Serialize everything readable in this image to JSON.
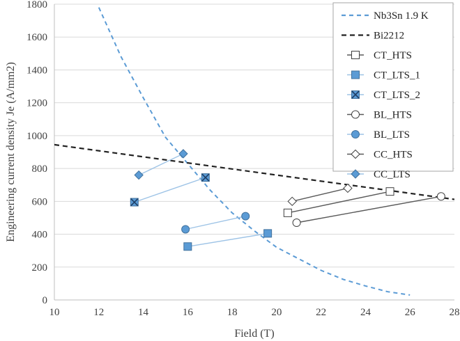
{
  "chart_data": {
    "type": "scatter",
    "title": "",
    "xlabel": "Field (T)",
    "ylabel": "Engineering current density Je (A/mm2)",
    "xlim": [
      10,
      28
    ],
    "ylim": [
      0,
      1800
    ],
    "xticks": [
      10,
      12,
      14,
      16,
      18,
      20,
      22,
      24,
      26,
      28
    ],
    "yticks": [
      0,
      200,
      400,
      600,
      800,
      1000,
      1200,
      1400,
      1600,
      1800
    ],
    "grid": true,
    "legend_position": "top-right",
    "series": [
      {
        "name": "Nb3Sn 1.9 K",
        "kind": "curve",
        "style": "dashed",
        "color": "#5b9bd5",
        "x": [
          12.0,
          13.0,
          14.0,
          15.0,
          16.0,
          17.0,
          18.0,
          19.0,
          20.0,
          21.0,
          22.0,
          23.0,
          24.0,
          25.0,
          26.0
        ],
        "y": [
          1780,
          1480,
          1230,
          990,
          830,
          670,
          530,
          420,
          320,
          250,
          180,
          125,
          85,
          50,
          30
        ]
      },
      {
        "name": "Bi2212",
        "kind": "line",
        "style": "dashed",
        "color": "#222222",
        "x": [
          10,
          28
        ],
        "y": [
          945,
          612
        ]
      },
      {
        "name": "CT_HTS",
        "kind": "segments",
        "marker": "square",
        "filled": false,
        "color": "#404040",
        "segments": [
          [
            [
              20.5,
              530
            ],
            [
              25.1,
              660
            ]
          ]
        ]
      },
      {
        "name": "CT_LTS_1",
        "kind": "segments",
        "marker": "square",
        "filled": true,
        "color": "#5b9bd5",
        "segments": [
          [
            [
              16.0,
              325
            ],
            [
              19.6,
              405
            ]
          ]
        ]
      },
      {
        "name": "CT_LTS_2",
        "kind": "segments",
        "marker": "x-square",
        "filled": true,
        "color": "#5b9bd5",
        "segments": [
          [
            [
              13.6,
              595
            ],
            [
              16.8,
              745
            ]
          ]
        ]
      },
      {
        "name": "BL_HTS",
        "kind": "segments",
        "marker": "circle",
        "filled": false,
        "color": "#404040",
        "segments": [
          [
            [
              20.9,
              470
            ],
            [
              27.4,
              630
            ]
          ]
        ]
      },
      {
        "name": "BL_LTS",
        "kind": "segments",
        "marker": "circle",
        "filled": true,
        "color": "#5b9bd5",
        "segments": [
          [
            [
              15.9,
              430
            ],
            [
              18.6,
              510
            ]
          ]
        ]
      },
      {
        "name": "CC_HTS",
        "kind": "segments",
        "marker": "diamond",
        "filled": false,
        "color": "#404040",
        "segments": [
          [
            [
              20.7,
              600
            ],
            [
              23.2,
              680
            ]
          ]
        ]
      },
      {
        "name": "CC_LTS",
        "kind": "segments",
        "marker": "diamond",
        "filled": true,
        "color": "#5b9bd5",
        "segments": [
          [
            [
              13.8,
              760
            ],
            [
              15.8,
              890
            ]
          ]
        ]
      }
    ]
  },
  "colors": {
    "blue_fill": "#5b9bd5",
    "blue_edge": "#41719c",
    "blue_line": "#9dc3e6",
    "dark": "#222222",
    "grid": "#d9d9d9"
  }
}
